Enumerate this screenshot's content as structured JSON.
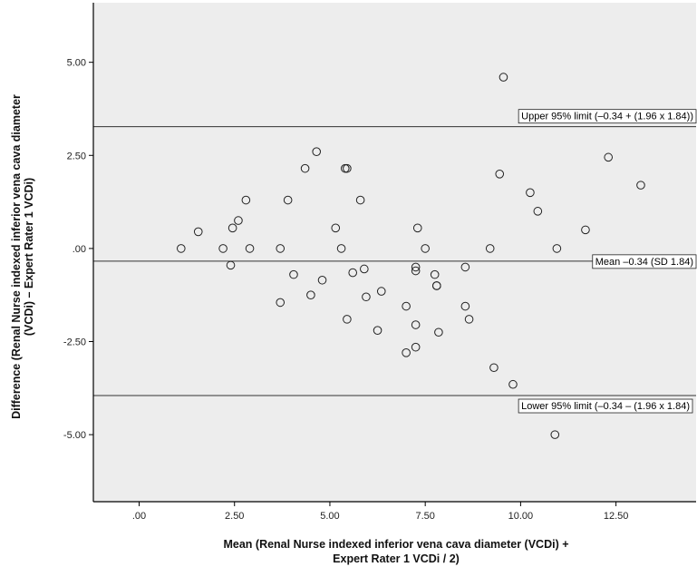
{
  "chart_data": {
    "type": "scatter",
    "title": "",
    "xlabel": [
      "Mean (Renal Nurse indexed inferior vena cava diameter (VCDi) +",
      "Expert Rater 1 VCDi  / 2)"
    ],
    "ylabel": [
      "Difference (Renal Nurse indexed inferior vena cava diameter",
      "(VCDi) – Expert Rater 1 VCDi)"
    ],
    "xlim": [
      -1.2,
      14.6
    ],
    "ylim": [
      -6.8,
      6.6
    ],
    "x_ticks": [
      {
        "value": 0,
        "label": ".00"
      },
      {
        "value": 2.5,
        "label": "2.50"
      },
      {
        "value": 5,
        "label": "5.00"
      },
      {
        "value": 7.5,
        "label": "7.50"
      },
      {
        "value": 10,
        "label": "10.00"
      },
      {
        "value": 12.5,
        "label": "12.50"
      }
    ],
    "y_ticks": [
      {
        "value": 5,
        "label": "5.00"
      },
      {
        "value": 2.5,
        "label": "2.50"
      },
      {
        "value": 0,
        "label": ".00"
      },
      {
        "value": -2.5,
        "label": "-2.50"
      },
      {
        "value": -5,
        "label": "-5.00"
      }
    ],
    "grid": false,
    "reference_lines": [
      {
        "y": 3.27,
        "label": "Upper 95% limit (–0.34 + (1.96 x 1.84))"
      },
      {
        "y": -0.34,
        "label": "Mean –0.34 (SD 1.84)"
      },
      {
        "y": -3.95,
        "label": "Lower 95% limit (–0.34 – (1.96 x 1.84)"
      }
    ],
    "points": [
      [
        1.1,
        0.0
      ],
      [
        1.55,
        0.45
      ],
      [
        2.2,
        0.0
      ],
      [
        2.4,
        -0.45
      ],
      [
        2.45,
        0.55
      ],
      [
        2.6,
        0.75
      ],
      [
        2.8,
        1.3
      ],
      [
        2.9,
        0.0
      ],
      [
        3.7,
        0.0
      ],
      [
        3.7,
        -1.45
      ],
      [
        3.9,
        1.3
      ],
      [
        4.05,
        -0.7
      ],
      [
        4.35,
        2.15
      ],
      [
        4.5,
        -1.25
      ],
      [
        4.65,
        2.6
      ],
      [
        4.8,
        -0.85
      ],
      [
        5.15,
        0.55
      ],
      [
        5.3,
        0.0
      ],
      [
        5.4,
        2.15
      ],
      [
        5.45,
        2.15
      ],
      [
        5.45,
        -1.9
      ],
      [
        5.6,
        -0.65
      ],
      [
        5.8,
        1.3
      ],
      [
        5.9,
        -0.55
      ],
      [
        5.95,
        -1.3
      ],
      [
        6.25,
        -2.2
      ],
      [
        6.35,
        -1.15
      ],
      [
        7.0,
        -1.55
      ],
      [
        7.0,
        -2.8
      ],
      [
        7.25,
        -0.5
      ],
      [
        7.25,
        -0.6
      ],
      [
        7.25,
        -2.05
      ],
      [
        7.25,
        -2.65
      ],
      [
        7.3,
        0.55
      ],
      [
        7.5,
        0.0
      ],
      [
        7.75,
        -0.7
      ],
      [
        7.8,
        -1.0
      ],
      [
        7.8,
        -1.0
      ],
      [
        7.85,
        -2.25
      ],
      [
        8.55,
        -0.5
      ],
      [
        8.55,
        -1.55
      ],
      [
        8.65,
        -1.9
      ],
      [
        9.2,
        0.0
      ],
      [
        9.3,
        -3.2
      ],
      [
        9.45,
        2.0
      ],
      [
        9.55,
        4.6
      ],
      [
        9.8,
        -3.65
      ],
      [
        10.25,
        1.5
      ],
      [
        10.45,
        1.0
      ],
      [
        10.9,
        -5.0
      ],
      [
        10.95,
        0.0
      ],
      [
        11.7,
        0.5
      ],
      [
        12.3,
        2.45
      ],
      [
        13.15,
        1.7
      ]
    ]
  }
}
